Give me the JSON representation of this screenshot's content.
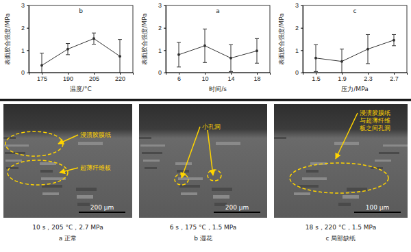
{
  "chart_data": [
    {
      "type": "line",
      "title": "b",
      "x_label": "温度/°C",
      "y_label": "表面胶合强度/MPa",
      "categories": [
        "175",
        "190",
        "205",
        "220"
      ],
      "values": [
        0.32,
        1.05,
        1.52,
        0.73
      ],
      "errors": [
        0.55,
        0.25,
        0.25,
        0.75
      ],
      "ylim": [
        0,
        3
      ],
      "yticks": [
        0,
        1,
        2,
        3
      ],
      "color": "#333333",
      "marker": "circle"
    },
    {
      "type": "line",
      "title": "a",
      "x_label": "时间/s",
      "y_label": "表面胶合强度/MPa",
      "categories": [
        "6",
        "10",
        "14",
        "18"
      ],
      "values": [
        0.8,
        1.2,
        0.65,
        0.97
      ],
      "errors": [
        0.55,
        0.75,
        0.6,
        0.55
      ],
      "ylim": [
        0,
        3
      ],
      "yticks": [
        0,
        1,
        2,
        3
      ],
      "color": "#333333",
      "marker": "circle"
    },
    {
      "type": "line",
      "title": "c",
      "x_label": "压力/MPa",
      "y_label": "表面胶合强度/MPa",
      "categories": [
        "1.5",
        "1.9",
        "2.3",
        "2.7"
      ],
      "values": [
        0.65,
        0.5,
        1.05,
        1.45
      ],
      "errors": [
        0.6,
        0.55,
        0.65,
        0.25
      ],
      "ylim": [
        0,
        3
      ],
      "yticks": [
        0,
        1,
        2,
        3
      ],
      "color": "#333333",
      "marker": "circle"
    }
  ],
  "micrographs": [
    {
      "conditions": "10 s，205 °C，2.7 MPa",
      "caption": "a 正常",
      "scale_bar": "200 μm",
      "annotations": [
        "浸渍胶膜纸",
        "超薄纤维板"
      ]
    },
    {
      "conditions": "6 s，175 °C，1.5 MPa",
      "caption": "b 湿花",
      "scale_bar": "200 μm",
      "annotations": [
        "小孔洞"
      ]
    },
    {
      "conditions": "18 s，220 °C，1.5 MPa",
      "caption": "c 局部缺纸",
      "scale_bar": "100 μm",
      "annotations": [
        "浸渍胶膜纸与超薄纤维板之间孔洞"
      ]
    }
  ]
}
